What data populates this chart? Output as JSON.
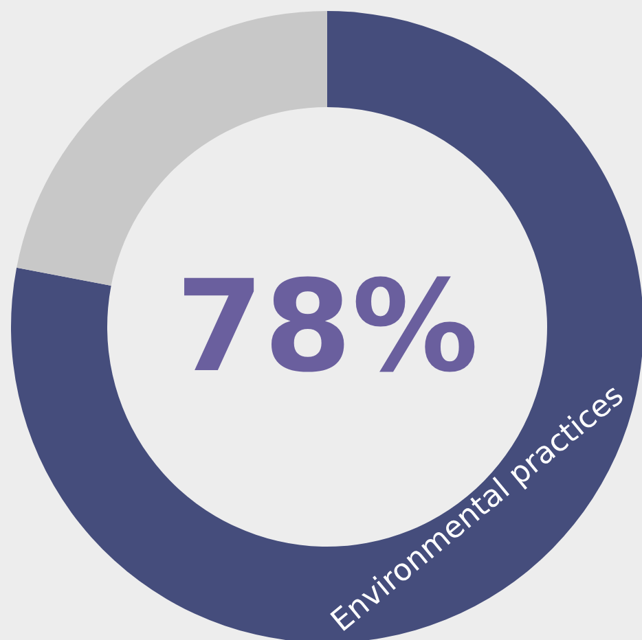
{
  "chart_data": {
    "type": "donut",
    "categories": [
      "Environmental practices",
      null
    ],
    "values": [
      78,
      22
    ],
    "colors": [
      "#454d7c",
      "#c8c8c8"
    ],
    "value_labels": [
      "78%",
      null
    ],
    "legend": false
  }
}
